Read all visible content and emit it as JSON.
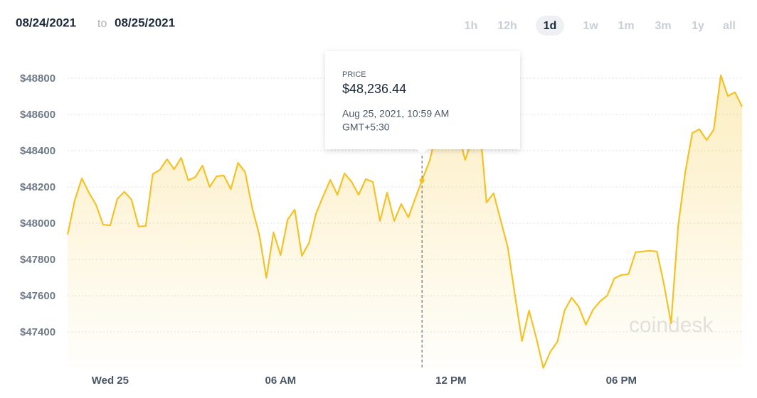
{
  "header": {
    "from": "08/24/2021",
    "to_word": "to",
    "to": "08/25/2021"
  },
  "range_buttons": {
    "options": [
      "1h",
      "12h",
      "1d",
      "1w",
      "1m",
      "3m",
      "1y",
      "all"
    ],
    "selected": "1d"
  },
  "chart_data": {
    "type": "line",
    "color": "#f5c223",
    "grid": true,
    "watermark": "coindesk",
    "x": [
      -1.5,
      -1.25,
      -1,
      -0.75,
      -0.5,
      -0.25,
      0,
      0.25,
      0.5,
      0.75,
      1,
      1.25,
      1.5,
      1.75,
      2,
      2.25,
      2.5,
      2.75,
      3,
      3.25,
      3.5,
      3.75,
      4,
      4.25,
      4.5,
      4.75,
      5,
      5.25,
      5.5,
      5.75,
      6,
      6.25,
      6.5,
      6.75,
      7,
      7.25,
      7.5,
      7.75,
      8,
      8.25,
      8.5,
      8.75,
      9,
      9.25,
      9.5,
      9.75,
      10,
      10.25,
      10.5,
      10.75,
      10.98,
      11.25,
      11.5,
      11.75,
      12,
      12.25,
      12.5,
      12.75,
      13,
      13.25,
      13.5,
      13.75,
      14,
      14.25,
      14.5,
      14.75,
      15,
      15.25,
      15.5,
      15.75,
      16,
      16.25,
      16.5,
      16.75,
      17,
      17.25,
      17.5,
      17.75,
      18,
      18.25,
      18.5,
      18.75,
      19,
      19.25,
      19.5,
      19.75,
      20,
      20.25,
      20.5,
      20.75,
      21,
      21.25,
      21.5,
      21.75,
      22,
      22.25
    ],
    "values": [
      47937,
      48126,
      48247,
      48169,
      48102,
      47992,
      47988,
      48134,
      48173,
      48130,
      47981,
      47985,
      48271,
      48294,
      48353,
      48298,
      48361,
      48236,
      48255,
      48318,
      48200,
      48259,
      48263,
      48188,
      48333,
      48282,
      48083,
      47937,
      47698,
      47949,
      47824,
      48020,
      48075,
      47820,
      47891,
      48055,
      48149,
      48239,
      48157,
      48275,
      48228,
      48157,
      48243,
      48228,
      48012,
      48169,
      48012,
      48106,
      48032,
      48141,
      48236.44,
      48345,
      48506,
      48604,
      48545,
      48506,
      48349,
      48467,
      48565,
      48114,
      48165,
      48016,
      47867,
      47604,
      47350,
      47518,
      47369,
      47201,
      47291,
      47346,
      47518,
      47589,
      47538,
      47440,
      47522,
      47569,
      47600,
      47695,
      47714,
      47718,
      47840,
      47844,
      47848,
      47844,
      47663,
      47448,
      47985,
      48283,
      48498,
      48518,
      48459,
      48514,
      48816,
      48702,
      48722,
      48643
    ],
    "xlim": [
      -1.5,
      22.25
    ],
    "xticks": [
      {
        "value": 0,
        "label": "Wed 25"
      },
      {
        "value": 6,
        "label": "06 AM"
      },
      {
        "value": 12,
        "label": "12 PM"
      },
      {
        "value": 18,
        "label": "06 PM"
      }
    ],
    "ylim": [
      47200,
      49000
    ],
    "yticks": [
      {
        "value": 47400,
        "label": "$47400"
      },
      {
        "value": 47600,
        "label": "$47600"
      },
      {
        "value": 47800,
        "label": "$47800"
      },
      {
        "value": 48000,
        "label": "$48000"
      },
      {
        "value": 48200,
        "label": "$48200"
      },
      {
        "value": 48400,
        "label": "$48400"
      },
      {
        "value": 48600,
        "label": "$48600"
      },
      {
        "value": 48800,
        "label": "$48800"
      }
    ],
    "tooltip": {
      "x": 10.98,
      "y": 48236.44,
      "label": "PRICE",
      "value_label": "$48,236.44",
      "time": "Aug 25, 2021, 10:59 AM",
      "timezone": "GMT+5:30"
    }
  }
}
